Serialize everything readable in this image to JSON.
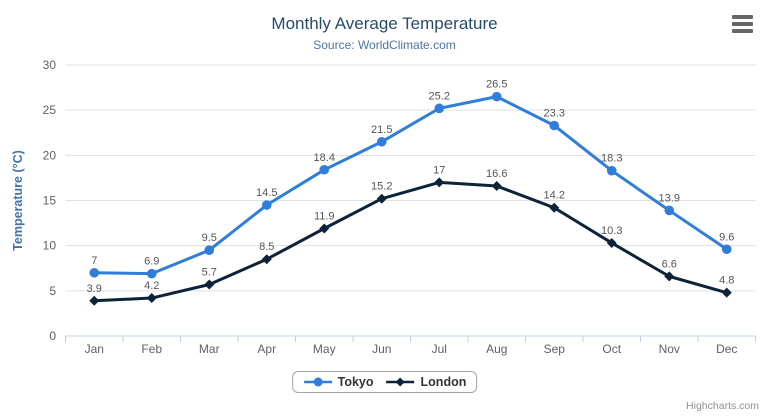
{
  "chart": {
    "title": "Monthly Average Temperature",
    "subtitle": "Source: WorldClimate.com",
    "credits": "Highcharts.com"
  },
  "context_menu": {
    "icon": "hamburger-menu-icon"
  },
  "chart_data": {
    "type": "line",
    "title": "Monthly Average Temperature",
    "subtitle": "Source: WorldClimate.com",
    "categories": [
      "Jan",
      "Feb",
      "Mar",
      "Apr",
      "May",
      "Jun",
      "Jul",
      "Aug",
      "Sep",
      "Oct",
      "Nov",
      "Dec"
    ],
    "series": [
      {
        "name": "Tokyo",
        "color": "#2f7ed8",
        "marker": "circle",
        "values": [
          7,
          6.9,
          9.5,
          14.5,
          18.4,
          21.5,
          25.2,
          26.5,
          23.3,
          18.3,
          13.9,
          9.6
        ]
      },
      {
        "name": "London",
        "color": "#0d233a",
        "marker": "diamond",
        "values": [
          3.9,
          4.2,
          5.7,
          8.5,
          11.9,
          15.2,
          17,
          16.6,
          14.2,
          10.3,
          6.6,
          4.8
        ]
      }
    ],
    "xlabel": "",
    "ylabel": "Temperature (°C)",
    "ylim": [
      0,
      30
    ],
    "yticks": [
      0,
      5,
      10,
      15,
      20,
      25,
      30
    ],
    "grid": true,
    "legend_position": "bottom",
    "data_labels": true
  },
  "colors": {
    "title": "#274b6d",
    "subtitle": "#4d759e",
    "axis_labels": "#606060",
    "axis_title": "#4572a7",
    "grid_line": "#e0e0e0",
    "axis_line": "#c0d0e0",
    "data_label": "#555555",
    "legend_text": "#333333",
    "legend_border": "#a5a5a5",
    "credits": "#909090",
    "menu_icon": "#666666"
  }
}
